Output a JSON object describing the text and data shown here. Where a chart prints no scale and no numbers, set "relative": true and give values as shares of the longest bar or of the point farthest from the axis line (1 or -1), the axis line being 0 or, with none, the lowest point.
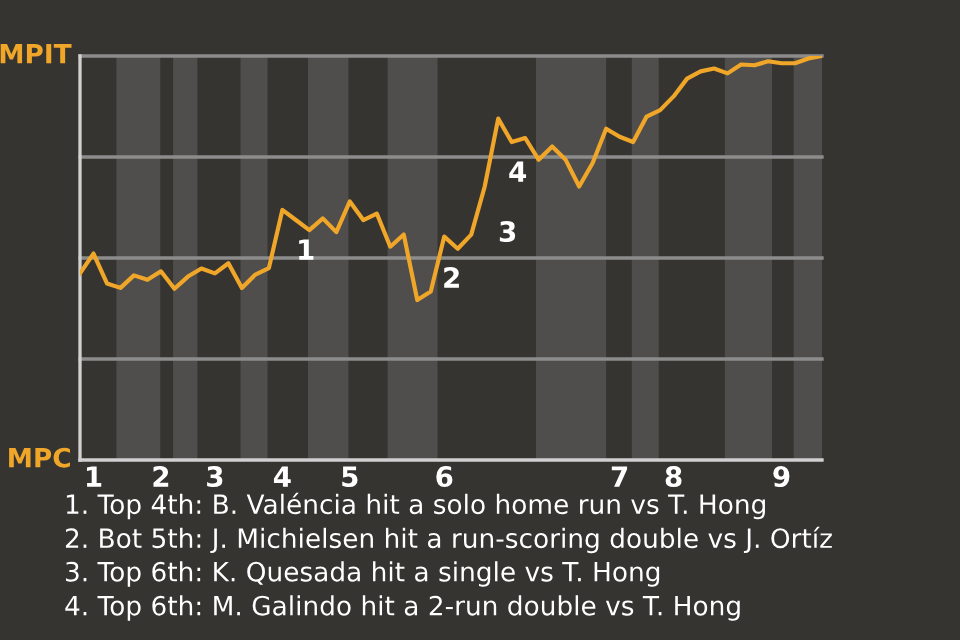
{
  "chart_data": {
    "type": "line",
    "relative": true,
    "categories": [
      null,
      "1",
      null,
      null,
      null,
      null,
      "2",
      null,
      null,
      null,
      "3",
      null,
      null,
      null,
      null,
      "4",
      null,
      null,
      null,
      null,
      "5",
      null,
      null,
      null,
      null,
      null,
      null,
      "6",
      null,
      null,
      null,
      null,
      null,
      null,
      null,
      null,
      null,
      null,
      null,
      null,
      "7",
      null,
      null,
      null,
      "8",
      null,
      null,
      null,
      null,
      null,
      null,
      null,
      "9",
      null,
      null,
      null
    ],
    "series": [
      {
        "color": "#f0a629",
        "values": [
          0.462,
          0.511,
          0.437,
          0.426,
          0.457,
          0.446,
          0.467,
          0.424,
          0.454,
          0.474,
          0.462,
          0.487,
          0.426,
          0.459,
          0.475,
          0.619,
          0.594,
          0.569,
          0.598,
          0.564,
          0.64,
          0.594,
          0.61,
          0.528,
          0.558,
          0.396,
          0.417,
          0.553,
          0.523,
          0.558,
          0.677,
          0.845,
          0.787,
          0.797,
          0.743,
          0.776,
          0.743,
          0.677,
          0.735,
          0.82,
          0.8,
          0.787,
          0.85,
          0.866,
          0.9,
          0.944,
          0.962,
          0.969,
          0.957,
          0.979,
          0.977,
          0.987,
          0.982,
          0.982,
          0.994,
          1
        ]
      }
    ],
    "legend": false,
    "marker": "none",
    "line_style": "solid",
    "ref_lines": [
      {
        "axis": "y",
        "value": 1,
        "label": "MPIT",
        "color": "#8c8c8c"
      },
      {
        "axis": "y",
        "value": 0.75,
        "color": "#8c8c8c"
      },
      {
        "axis": "y",
        "value": 0.5,
        "color": "#8c8c8c"
      },
      {
        "axis": "y",
        "value": 0.25,
        "color": "#8c8c8c"
      }
    ],
    "annotations": [
      "MPC",
      "1",
      "2",
      "3",
      "4",
      "1. Top 4th: B. Valéncia hit a solo home run vs T. Hong",
      "2. Bot 5th: J. Michielsen hit a run-scoring double vs J. Ortíz",
      "3. Top 6th: K. Quesada hit a single vs T. Hong",
      "4. Top 6th: M. Galindo hit a 2-run double vs T. Hong"
    ]
  }
}
